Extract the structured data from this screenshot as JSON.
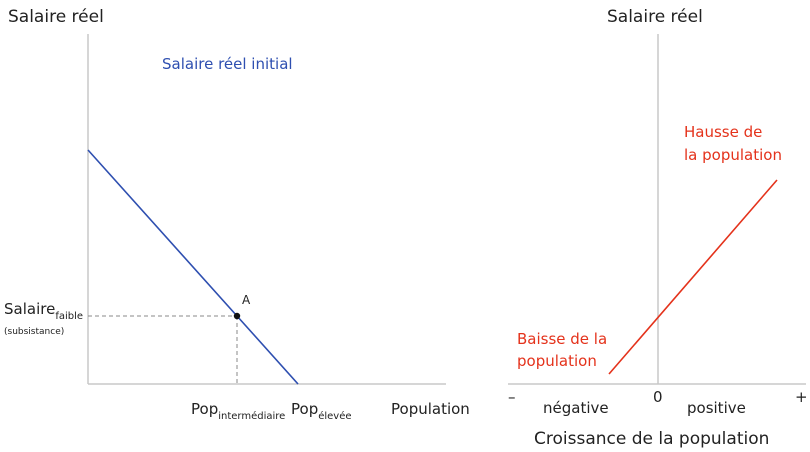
{
  "left_panel": {
    "ylabel": "Salaire réel",
    "xlabel": "Population",
    "curve_label": "Salaire réel initial",
    "point_label": "A",
    "wage_label_main": "Salaire",
    "wage_label_sub": "faible",
    "wage_label_note": "(subsistance)",
    "tick1_main": "Pop",
    "tick1_sub": "intermédiaire",
    "tick2_main": "Pop",
    "tick2_sub": "élevée"
  },
  "right_panel": {
    "ylabel": "Salaire réel",
    "xlabel": "Croissance de la population",
    "origin_label": "0",
    "minus_label": "–",
    "plus_label": "+",
    "negative_label": "négative",
    "positive_label": "positive",
    "upper_label_line1": "Hausse de",
    "upper_label_line2": "la population",
    "lower_label_line1": "Baisse de la",
    "lower_label_line2": "population"
  },
  "colors": {
    "wage_curve": "#2e4fb0",
    "growth_curve": "#e4321b",
    "axis": "#c8c8c8",
    "guide": "#888888",
    "point": "#111111"
  }
}
